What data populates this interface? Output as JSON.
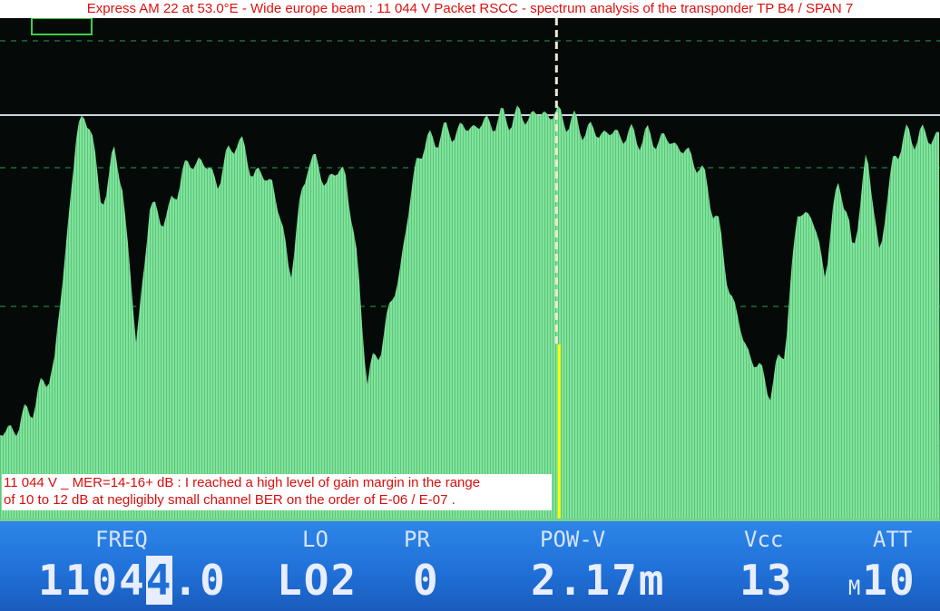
{
  "title": "Express AM 22 at 53.0°E - Wide europe beam : 11 044 V Packet RSCC - spectrum analysis of the transponder TP B4 / SPAN 7",
  "note": {
    "line1": "11 044 V _  MER=14-16+ dB : I reached a high level of gain margin in the range",
    "line2": "of 10 to 12 dB at negligibly small channel BER on the order of E-06 / E-07 ."
  },
  "panel": {
    "freq_label": "FREQ",
    "freq_value_pre": "1104",
    "freq_value_cursor": "4",
    "freq_value_post": ".0",
    "lo_label": "LO",
    "lo_value": "LO2",
    "pr_label": "PR",
    "pr_value": "0",
    "pow_label": "POW-V",
    "pow_value": "2.17m",
    "vcc_label": "Vcc",
    "vcc_value": "13",
    "att_label": "ATT",
    "att_prefix": "M",
    "att_value": "10"
  },
  "colors": {
    "trace": "#7fe39a",
    "panel": "#1f6fd6",
    "marker": "#ffff00",
    "title_text": "#e01010"
  },
  "chart_data": {
    "type": "area",
    "title": "",
    "xlabel": "",
    "ylabel": "",
    "x": [
      0,
      1.9,
      3.9,
      5.8,
      7.2,
      8.2,
      9.7,
      10.6,
      12.1,
      13.0,
      14.5,
      15.9,
      17.9,
      19.3,
      21.2,
      23.2,
      25.1,
      27.0,
      29.0,
      30.9,
      32.8,
      34.7,
      36.7,
      38.1,
      39.1,
      40.5,
      42.5,
      44.4,
      46.3,
      50.2,
      54.1,
      58.9,
      62.7,
      67.6,
      71.4,
      74.3,
      76.3,
      77.2,
      79.2,
      82.0,
      83.5,
      84.9,
      86.4,
      87.8,
      89.3,
      90.7,
      92.2,
      93.6,
      95.1,
      96.5,
      100
    ],
    "values": [
      16.7,
      18.5,
      23.9,
      31.2,
      58.3,
      78.3,
      80.1,
      61.9,
      72.8,
      67.4,
      34.8,
      61.9,
      60.1,
      69.2,
      71.9,
      67.4,
      76.4,
      69.2,
      67.4,
      49.3,
      72.8,
      67.4,
      70.1,
      49.3,
      27.5,
      34.8,
      49.3,
      72.8,
      76.4,
      78.3,
      80.1,
      81.0,
      77.4,
      76.4,
      75.5,
      71.0,
      60.1,
      49.3,
      34.8,
      25.7,
      34.8,
      61.9,
      60.1,
      49.3,
      69.2,
      52.9,
      72.8,
      52.9,
      72.8,
      76.4,
      76.4
    ],
    "xlim": [
      0,
      100
    ],
    "ylim": [
      0,
      100
    ],
    "marker_x": 59.2,
    "grid": true
  }
}
